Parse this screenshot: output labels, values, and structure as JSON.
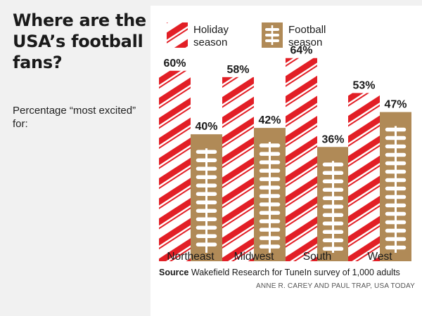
{
  "header": {
    "title": "Where are the USA’s football fans?",
    "subtitle": "Percentage “most excited” for:"
  },
  "footer": {
    "source_label": "Source",
    "source_text": "Wakefield Research for TuneIn survey of 1,000 adults",
    "credit": "ANNE R. CAREY AND PAUL TRAP, USA TODAY"
  },
  "colors": {
    "holiday_red": "#e21f26",
    "holiday_white": "#ffffff",
    "football_gold": "#b08a57",
    "lace_white": "#ffffff",
    "background": "#f1f1f1"
  },
  "chart_data": {
    "type": "bar",
    "categories": [
      "Northeast",
      "Midwest",
      "South",
      "West"
    ],
    "series": [
      {
        "name": "Holiday season",
        "values": [
          60,
          58,
          64,
          53
        ],
        "labels": [
          "60%",
          "58%",
          "64%",
          "53%"
        ],
        "style": "candy-cane-stripes"
      },
      {
        "name": "Football season",
        "values": [
          40,
          42,
          36,
          47
        ],
        "labels": [
          "40%",
          "42%",
          "36%",
          "47%"
        ],
        "style": "football-laces"
      }
    ],
    "legend": {
      "position": "top",
      "entries": [
        [
          "Holiday",
          "season"
        ],
        [
          "Football",
          "season"
        ]
      ]
    },
    "ylim": [
      0,
      70
    ],
    "grid": false
  }
}
